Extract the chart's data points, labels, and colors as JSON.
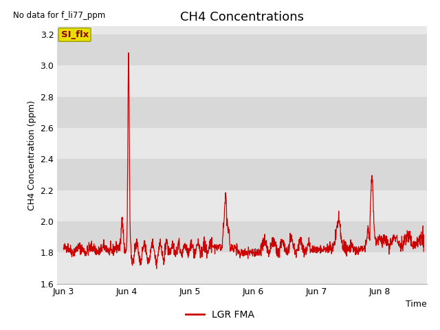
{
  "title": "CH4 Concentrations",
  "ylabel": "CH4 Concentration (ppm)",
  "xlabel": "Time",
  "ylim": [
    1.6,
    3.25
  ],
  "no_data_text": "No data for f_li77_ppm",
  "legend_box_label": "SI_flx",
  "legend_line_label": "LGR FMA",
  "line_color": "#cc0000",
  "bg_color": "#e8e8e8",
  "bg_color_dark": "#d8d8d8",
  "yticks": [
    1.6,
    1.8,
    2.0,
    2.2,
    2.4,
    2.6,
    2.8,
    3.0,
    3.2
  ],
  "xtick_labels": [
    "Jun 3",
    "Jun 4",
    "Jun 5",
    "Jun 6",
    "Jun 7",
    "Jun 8"
  ],
  "xtick_positions": [
    0,
    1,
    2,
    3,
    4,
    5
  ],
  "xlim": [
    -0.1,
    5.75
  ],
  "title_fontsize": 13,
  "tick_fontsize": 9,
  "ylabel_fontsize": 9,
  "xlabel_fontsize": 9
}
